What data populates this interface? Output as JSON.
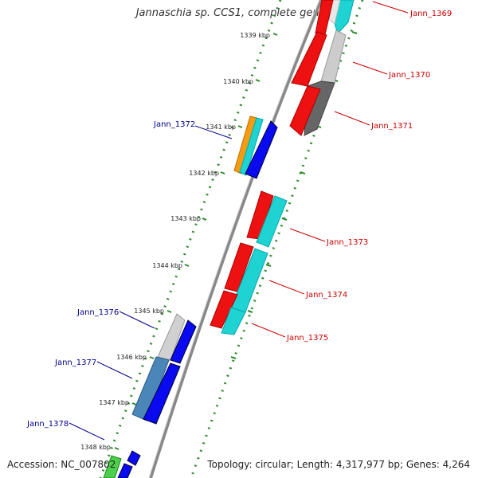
{
  "title": "Jannaschia sp. CCS1, complete genome",
  "footer": {
    "accession": "Accession: NC_007802",
    "stats": "Topology: circular; Length: 4,317,977 bp; Genes: 4,264"
  },
  "colors": {
    "backbone": "#808080",
    "tick": "#2e8b2e",
    "label_forward": "#cc0000",
    "label_reverse": "#00008b"
  },
  "ticks": [
    "1339 kbp",
    "1340 kbp",
    "1341 kbp",
    "1342 kbp",
    "1343 kbp",
    "1344 kbp",
    "1345 kbp",
    "1346 kbp",
    "1347 kbp",
    "1348 kbp"
  ],
  "genes_forward": [
    "Jann_1369",
    "Jann_1370",
    "Jann_1371",
    "Jann_1373",
    "Jann_1374",
    "Jann_1375"
  ],
  "genes_reverse": [
    "Jann_1372",
    "Jann_1376",
    "Jann_1377",
    "Jann_1378"
  ]
}
